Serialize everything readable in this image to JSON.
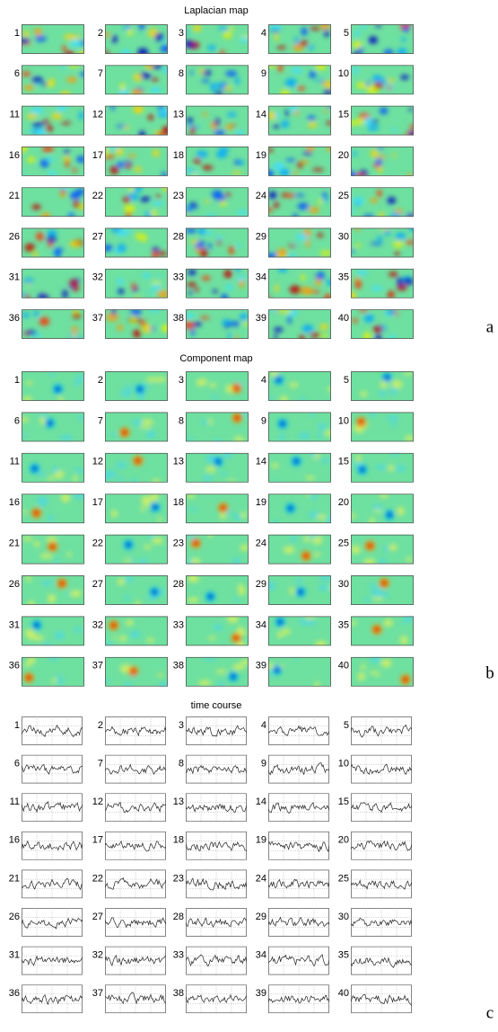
{
  "panels": [
    {
      "title": "Laplacian map",
      "letter": "a",
      "tiles": [
        "1",
        "2",
        "3",
        "4",
        "5",
        "6",
        "7",
        "8",
        "9",
        "10",
        "11",
        "12",
        "13",
        "14",
        "15",
        "16",
        "17",
        "18",
        "19",
        "20",
        "21",
        "22",
        "23",
        "24",
        "25",
        "26",
        "27",
        "28",
        "29",
        "30",
        "31",
        "32",
        "33",
        "34",
        "35",
        "36",
        "37",
        "38",
        "39",
        "40"
      ]
    },
    {
      "title": "Component map",
      "letter": "b",
      "tiles": [
        "1",
        "2",
        "3",
        "4",
        "5",
        "6",
        "7",
        "8",
        "9",
        "10",
        "11",
        "12",
        "13",
        "14",
        "15",
        "16",
        "17",
        "18",
        "19",
        "20",
        "21",
        "22",
        "23",
        "24",
        "25",
        "26",
        "27",
        "28",
        "29",
        "30",
        "31",
        "32",
        "33",
        "34",
        "35",
        "36",
        "37",
        "38",
        "39",
        "40"
      ]
    },
    {
      "title": "time course",
      "letter": "c",
      "tiles": [
        "1",
        "2",
        "3",
        "4",
        "5",
        "6",
        "7",
        "8",
        "9",
        "10",
        "11",
        "12",
        "13",
        "14",
        "15",
        "16",
        "17",
        "18",
        "19",
        "20",
        "21",
        "22",
        "23",
        "24",
        "25",
        "26",
        "27",
        "28",
        "29",
        "30",
        "31",
        "32",
        "33",
        "34",
        "35",
        "36",
        "37",
        "38",
        "39",
        "40"
      ]
    }
  ]
}
